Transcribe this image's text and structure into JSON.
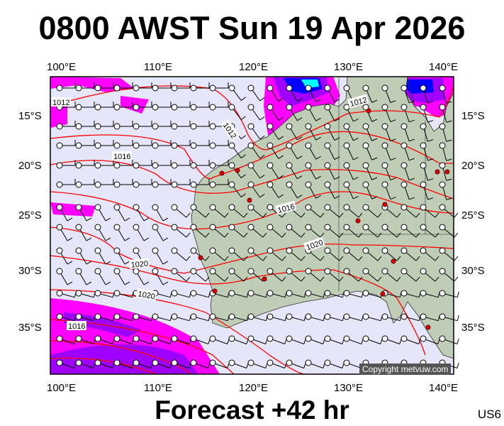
{
  "title": "0800 AWST Sun 19 Apr 2026",
  "footer": "Forecast +42 hr",
  "code": "US6",
  "copyright": "Copyright metvuw.com",
  "lon_labels": [
    "100°E",
    "110°E",
    "120°E",
    "130°E",
    "140°E"
  ],
  "lat_labels": [
    "15°S",
    "20°S",
    "25°S",
    "30°S",
    "35°S"
  ],
  "isobar_labels": [
    "1012",
    "1012",
    "1012",
    "1016",
    "1016",
    "1020",
    "1020",
    "1020",
    "1016"
  ],
  "colors": {
    "ocean": "#e6e6fa",
    "land": "#bfcdb6",
    "isobar": "#ff0000",
    "rain_light": "#ff00ff",
    "rain_mid": "#a000ff",
    "rain_heavy": "#0000ff",
    "rain_extreme": "#00ffff",
    "station": "#dd0000"
  }
}
